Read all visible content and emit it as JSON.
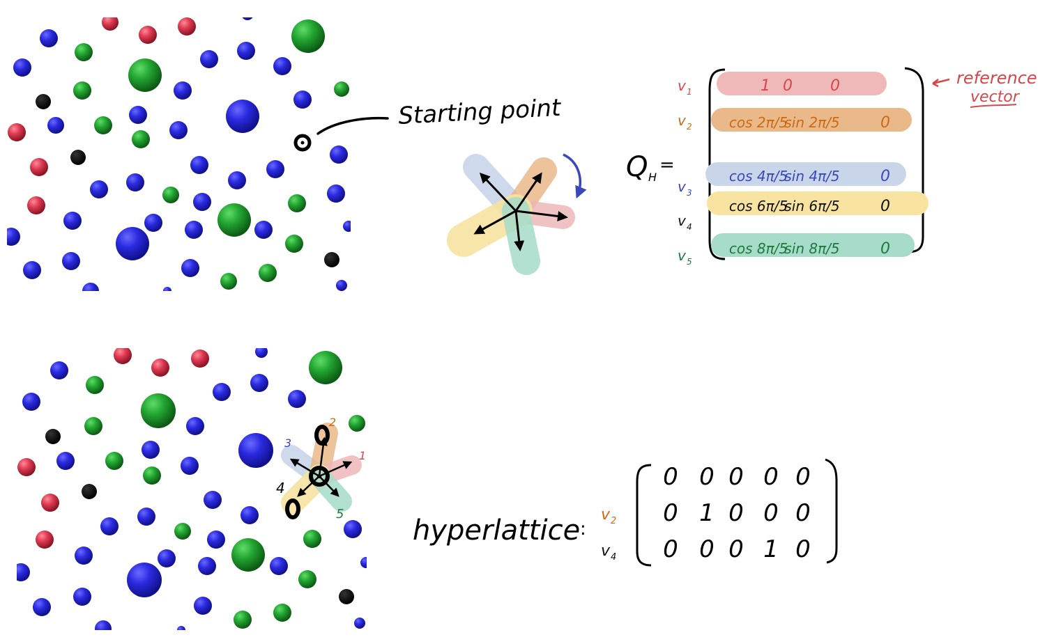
{
  "top_annotation": {
    "starting_point_label": "Starting point"
  },
  "matrix_Q": {
    "name": "Q",
    "subscript": "H",
    "equals": "=",
    "reference_label_line1": "reference",
    "reference_label_line2": "vector",
    "rows": [
      {
        "vec": "v",
        "sub": "1",
        "color": "#d6474c",
        "band": "#efb8b9",
        "cells": [
          "1",
          "0",
          "0"
        ]
      },
      {
        "vec": "v",
        "sub": "2",
        "color": "#cf6a12",
        "band": "#e9b98a",
        "cells": [
          "cos 2π/5",
          "sin 2π/5",
          "0"
        ]
      },
      {
        "vec": "v",
        "sub": "3",
        "color": "#3a48b8",
        "band": "#c9d6ea",
        "cells": [
          "cos 4π/5",
          "sin 4π/5",
          "0"
        ]
      },
      {
        "vec": "v",
        "sub": "4",
        "color": "#111111",
        "band": "#f8e3a0",
        "cells": [
          "cos 6π/5",
          "sin 6π/5",
          "0"
        ]
      },
      {
        "vec": "v",
        "sub": "5",
        "color": "#1e7a3c",
        "band": "#a6dcc9",
        "cells": [
          "cos 8π/5",
          "sin 8π/5",
          "0"
        ]
      }
    ]
  },
  "matrix_hyperlattice": {
    "label": "hyperlattice",
    "equals": ":",
    "rows": [
      {
        "vec": "",
        "sub": "",
        "cells": [
          "0",
          "0",
          "0",
          "0",
          "0"
        ]
      },
      {
        "vec": "v",
        "sub": "2",
        "color": "#cf6a12",
        "cells": [
          "0",
          "1",
          "0",
          "0",
          "0"
        ]
      },
      {
        "vec": "v",
        "sub": "4",
        "color": "#111111",
        "cells": [
          "0",
          "0",
          "0",
          "1",
          "0"
        ]
      }
    ]
  },
  "bottom_star_labels": {
    "l1": "1",
    "l2": "2",
    "l3": "3",
    "l4": "4",
    "l5": "5"
  },
  "colors": {
    "blue_atom": "#2424c8",
    "green_atom": "#1f9a2e",
    "red_atom": "#d63a4e",
    "black_atom": "#000000"
  }
}
